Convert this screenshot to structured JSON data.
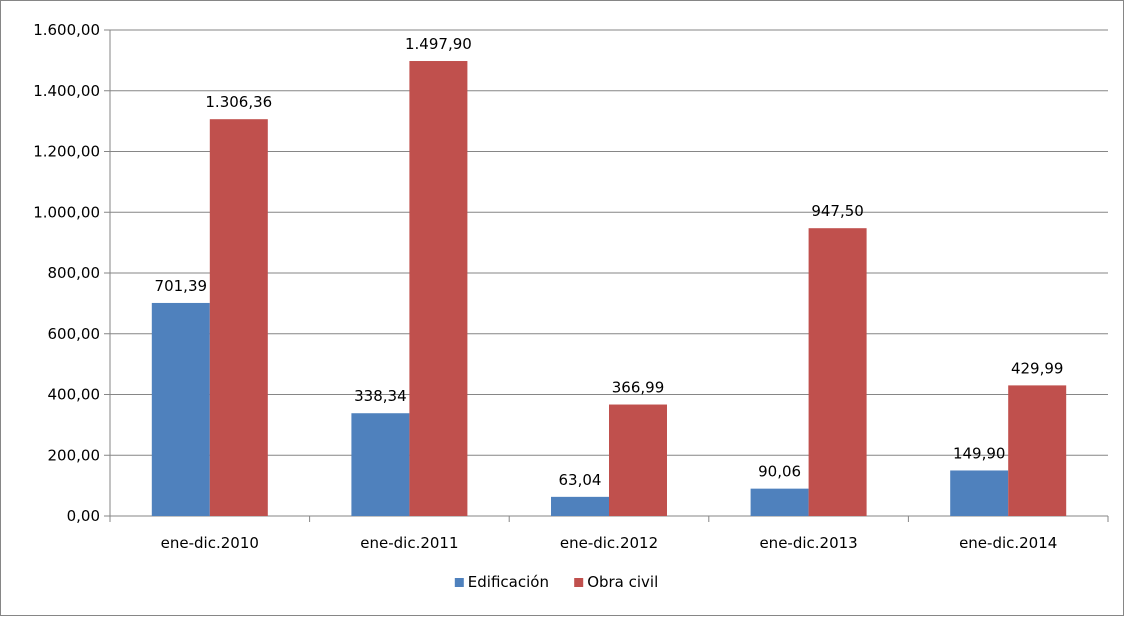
{
  "chart_data": {
    "type": "bar",
    "categories": [
      "ene-dic.2010",
      "ene-dic.2011",
      "ene-dic.2012",
      "ene-dic.2013",
      "ene-dic.2014"
    ],
    "series": [
      {
        "name": "Edificación",
        "color": "#4f81bd",
        "values": [
          701.39,
          338.34,
          63.04,
          90.06,
          149.9
        ],
        "labels": [
          "701,39",
          "338,34",
          "63,04",
          "90,06",
          "149,90"
        ]
      },
      {
        "name": "Obra civil",
        "color": "#c0504d",
        "values": [
          1306.36,
          1497.9,
          366.99,
          947.5,
          429.99
        ],
        "labels": [
          "1.306,36",
          "1.497,90",
          "366,99",
          "947,50",
          "429,99"
        ]
      }
    ],
    "ylim": [
      0,
      1600
    ],
    "yticks": [
      0,
      200,
      400,
      600,
      800,
      1000,
      1200,
      1400,
      1600
    ],
    "ytick_labels": [
      "0,00",
      "200,00",
      "400,00",
      "600,00",
      "800,00",
      "1.000,00",
      "1.200,00",
      "1.400,00",
      "1.600,00"
    ],
    "grid": true,
    "legend": "bottom-center",
    "title": "",
    "xlabel": "",
    "ylabel": ""
  }
}
